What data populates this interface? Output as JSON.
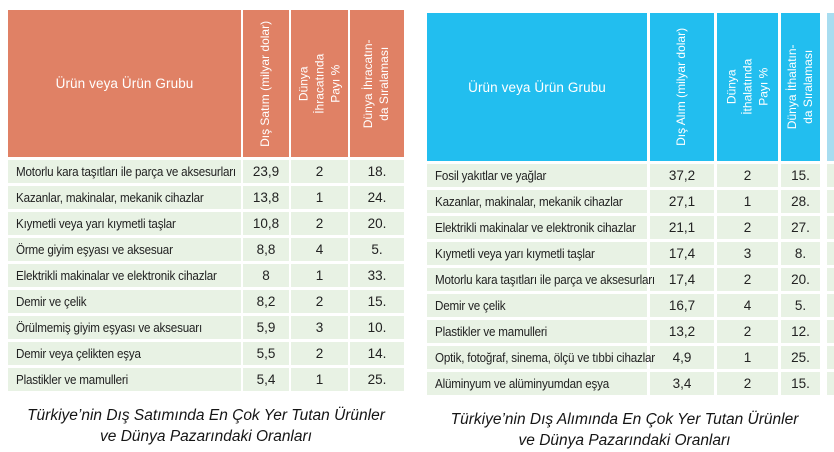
{
  "tables": [
    {
      "id": "exports",
      "accent_color": "#e08165",
      "row_color": "#e8f2e4",
      "header": {
        "product_label": "Ürün veya Ürün Grubu",
        "col2": "Dış Satım (milyar dolar)",
        "col3_lines": [
          "Dünya",
          "İhracatında",
          "Payı %"
        ],
        "col4_lines": [
          "Dünya İhracatın-",
          "da Sıralaması"
        ]
      },
      "rows": [
        {
          "product": "Motorlu kara taşıtları ile parça ve aksesurları",
          "value": "23,9",
          "share": "2",
          "rank": "18."
        },
        {
          "product": "Kazanlar, makinalar, mekanik cihazlar",
          "value": "13,8",
          "share": "1",
          "rank": "24."
        },
        {
          "product": "Kıymetli veya yarı kıymetli taşlar",
          "value": "10,8",
          "share": "2",
          "rank": "20."
        },
        {
          "product": "Örme giyim eşyası ve aksesuar",
          "value": "8,8",
          "share": "4",
          "rank": "5."
        },
        {
          "product": "Elektrikli makinalar ve elektronik cihazlar",
          "value": "8",
          "share": "1",
          "rank": "33."
        },
        {
          "product": "Demir ve çelik",
          "value": "8,2",
          "share": "2",
          "rank": "15."
        },
        {
          "product": "Örülmemiş giyim eşyası ve aksesuarı",
          "value": "5,9",
          "share": "3",
          "rank": "10."
        },
        {
          "product": "Demir veya çelikten eşya",
          "value": "5,5",
          "share": "2",
          "rank": "14."
        },
        {
          "product": "Plastikler ve mamulleri",
          "value": "5,4",
          "share": "1",
          "rank": "25."
        }
      ],
      "caption_lines": [
        "Türkiye’nin Dış Satımında En Çok Yer Tutan Ürünler",
        "ve Dünya Pazarındaki Oranları"
      ]
    },
    {
      "id": "imports",
      "accent_color": "#22beef",
      "row_color": "#e8f2e4",
      "header": {
        "product_label": "Ürün veya Ürün Grubu",
        "col2": "Dış Alım (milyar dolar)",
        "col3_lines": [
          "Dünya",
          "İthalatında",
          "Payı %"
        ],
        "col4_lines": [
          "Dünya İthalatın-",
          "da Sıralaması"
        ]
      },
      "rows": [
        {
          "product": "Fosil yakıtlar ve yağlar",
          "value": "37,2",
          "share": "2",
          "rank": "15."
        },
        {
          "product": "Kazanlar, makinalar, mekanik cihazlar",
          "value": "27,1",
          "share": "1",
          "rank": "28."
        },
        {
          "product": "Elektrikli makinalar ve elektronik cihazlar",
          "value": "21,1",
          "share": "2",
          "rank": "27."
        },
        {
          "product": "Kıymetli veya yarı kıymetli taşlar",
          "value": "17,4",
          "share": "3",
          "rank": "8."
        },
        {
          "product": "Motorlu kara taşıtları ile parça ve aksesurları",
          "value": "17,4",
          "share": "2",
          "rank": "20."
        },
        {
          "product": "Demir ve çelik",
          "value": "16,7",
          "share": "4",
          "rank": "5."
        },
        {
          "product": "Plastikler ve mamulleri",
          "value": "13,2",
          "share": "2",
          "rank": "12."
        },
        {
          "product": "Optik, fotoğraf, sinema, ölçü ve tıbbi cihazlar",
          "value": "4,9",
          "share": "1",
          "rank": "25."
        },
        {
          "product": "Alüminyum ve alüminyumdan eşya",
          "value": "3,4",
          "share": "2",
          "rank": "15."
        }
      ],
      "caption_lines": [
        "Türkiye’nin Dış Alımında En Çok Yer Tutan Ürünler",
        "ve Dünya Pazarındaki Oranları"
      ]
    }
  ],
  "edge_strip": {
    "header_color": "#a8ddf0",
    "row_color": "#e8f2e4"
  }
}
